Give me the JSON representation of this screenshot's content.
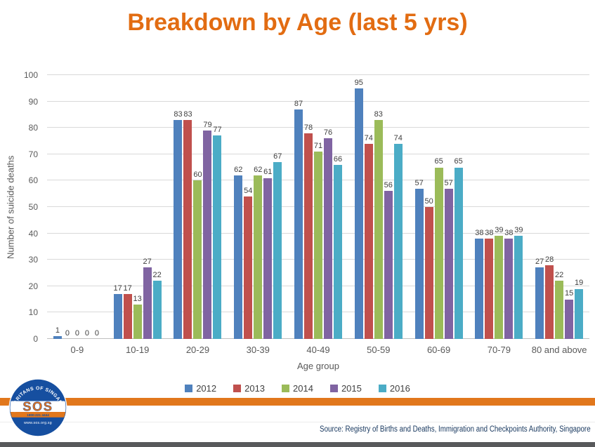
{
  "slide": {
    "source": "Source: Registry of Births and Deaths, Immigration and Checkpoints Authority, Singapore"
  },
  "logo": {
    "org_arc_text": "SAMARITANS OF SINGAPORE",
    "acronym": "SOS",
    "phone": "1800-221 4444",
    "website": "www.sos.org.sg"
  },
  "colors": {
    "title_orange": "#E26C12",
    "band_orange": "#E1771C",
    "bottom_bar_gray": "#58595B",
    "logo_blue": "#164FA0",
    "source_navy": "#17375E",
    "gridline": "#D9D9D9",
    "axis_text": "#595959",
    "data_label_text": "#3F3F3F"
  },
  "chart_data": {
    "type": "bar",
    "title": "Breakdown by Age (last 5 yrs)",
    "categories": [
      "0-9",
      "10-19",
      "20-29",
      "30-39",
      "40-49",
      "50-59",
      "60-69",
      "70-79",
      "80 and above"
    ],
    "series": [
      {
        "name": "2012",
        "color": "#4F81BD",
        "values": [
          1,
          17,
          83,
          62,
          87,
          95,
          57,
          38,
          27
        ]
      },
      {
        "name": "2013",
        "color": "#C0504D",
        "values": [
          0,
          17,
          83,
          54,
          78,
          74,
          50,
          38,
          28
        ]
      },
      {
        "name": "2014",
        "color": "#9BBB59",
        "values": [
          0,
          13,
          60,
          62,
          71,
          83,
          65,
          39,
          22
        ]
      },
      {
        "name": "2015",
        "color": "#8064A2",
        "values": [
          0,
          27,
          79,
          61,
          76,
          56,
          57,
          38,
          15
        ]
      },
      {
        "name": "2016",
        "color": "#4BACC6",
        "values": [
          0,
          22,
          77,
          67,
          66,
          74,
          65,
          39,
          19
        ]
      }
    ],
    "xlabel": "Age group",
    "ylabel": "Number of suicide deaths",
    "ylim": [
      0,
      100
    ],
    "ytick_step": 10,
    "grid": true,
    "legend_position": "bottom",
    "data_labels": true
  }
}
